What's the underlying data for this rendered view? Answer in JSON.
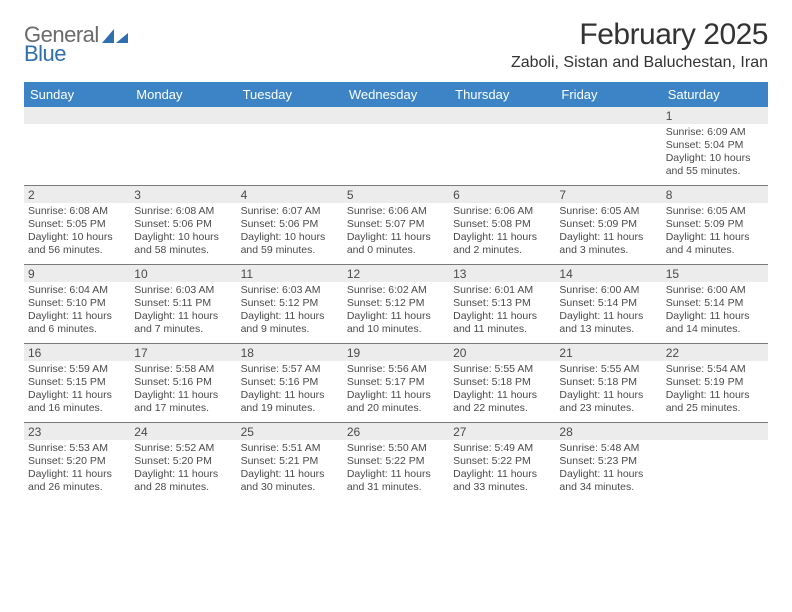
{
  "brand": {
    "line1": "General",
    "line2": "Blue"
  },
  "title": "February 2025",
  "location": "Zaboli, Sistan and Baluchestan, Iran",
  "colors": {
    "header_bg": "#3d84c6",
    "header_text": "#ffffff",
    "strip_bg": "#ececec",
    "body_text": "#4a4a4a",
    "rule": "#7a7a7a",
    "logo_gray": "#6a6a6a",
    "logo_blue": "#2f6fb0"
  },
  "typography": {
    "title_fontsize": 30,
    "location_fontsize": 16,
    "dow_fontsize": 13,
    "daynum_fontsize": 12,
    "body_fontsize": 10.5
  },
  "days_of_week": [
    "Sunday",
    "Monday",
    "Tuesday",
    "Wednesday",
    "Thursday",
    "Friday",
    "Saturday"
  ],
  "weeks": [
    [
      {
        "n": "",
        "sunrise": "",
        "sunset": "",
        "daylight1": "",
        "daylight2": ""
      },
      {
        "n": "",
        "sunrise": "",
        "sunset": "",
        "daylight1": "",
        "daylight2": ""
      },
      {
        "n": "",
        "sunrise": "",
        "sunset": "",
        "daylight1": "",
        "daylight2": ""
      },
      {
        "n": "",
        "sunrise": "",
        "sunset": "",
        "daylight1": "",
        "daylight2": ""
      },
      {
        "n": "",
        "sunrise": "",
        "sunset": "",
        "daylight1": "",
        "daylight2": ""
      },
      {
        "n": "",
        "sunrise": "",
        "sunset": "",
        "daylight1": "",
        "daylight2": ""
      },
      {
        "n": "1",
        "sunrise": "Sunrise: 6:09 AM",
        "sunset": "Sunset: 5:04 PM",
        "daylight1": "Daylight: 10 hours",
        "daylight2": "and 55 minutes."
      }
    ],
    [
      {
        "n": "2",
        "sunrise": "Sunrise: 6:08 AM",
        "sunset": "Sunset: 5:05 PM",
        "daylight1": "Daylight: 10 hours",
        "daylight2": "and 56 minutes."
      },
      {
        "n": "3",
        "sunrise": "Sunrise: 6:08 AM",
        "sunset": "Sunset: 5:06 PM",
        "daylight1": "Daylight: 10 hours",
        "daylight2": "and 58 minutes."
      },
      {
        "n": "4",
        "sunrise": "Sunrise: 6:07 AM",
        "sunset": "Sunset: 5:06 PM",
        "daylight1": "Daylight: 10 hours",
        "daylight2": "and 59 minutes."
      },
      {
        "n": "5",
        "sunrise": "Sunrise: 6:06 AM",
        "sunset": "Sunset: 5:07 PM",
        "daylight1": "Daylight: 11 hours",
        "daylight2": "and 0 minutes."
      },
      {
        "n": "6",
        "sunrise": "Sunrise: 6:06 AM",
        "sunset": "Sunset: 5:08 PM",
        "daylight1": "Daylight: 11 hours",
        "daylight2": "and 2 minutes."
      },
      {
        "n": "7",
        "sunrise": "Sunrise: 6:05 AM",
        "sunset": "Sunset: 5:09 PM",
        "daylight1": "Daylight: 11 hours",
        "daylight2": "and 3 minutes."
      },
      {
        "n": "8",
        "sunrise": "Sunrise: 6:05 AM",
        "sunset": "Sunset: 5:09 PM",
        "daylight1": "Daylight: 11 hours",
        "daylight2": "and 4 minutes."
      }
    ],
    [
      {
        "n": "9",
        "sunrise": "Sunrise: 6:04 AM",
        "sunset": "Sunset: 5:10 PM",
        "daylight1": "Daylight: 11 hours",
        "daylight2": "and 6 minutes."
      },
      {
        "n": "10",
        "sunrise": "Sunrise: 6:03 AM",
        "sunset": "Sunset: 5:11 PM",
        "daylight1": "Daylight: 11 hours",
        "daylight2": "and 7 minutes."
      },
      {
        "n": "11",
        "sunrise": "Sunrise: 6:03 AM",
        "sunset": "Sunset: 5:12 PM",
        "daylight1": "Daylight: 11 hours",
        "daylight2": "and 9 minutes."
      },
      {
        "n": "12",
        "sunrise": "Sunrise: 6:02 AM",
        "sunset": "Sunset: 5:12 PM",
        "daylight1": "Daylight: 11 hours",
        "daylight2": "and 10 minutes."
      },
      {
        "n": "13",
        "sunrise": "Sunrise: 6:01 AM",
        "sunset": "Sunset: 5:13 PM",
        "daylight1": "Daylight: 11 hours",
        "daylight2": "and 11 minutes."
      },
      {
        "n": "14",
        "sunrise": "Sunrise: 6:00 AM",
        "sunset": "Sunset: 5:14 PM",
        "daylight1": "Daylight: 11 hours",
        "daylight2": "and 13 minutes."
      },
      {
        "n": "15",
        "sunrise": "Sunrise: 6:00 AM",
        "sunset": "Sunset: 5:14 PM",
        "daylight1": "Daylight: 11 hours",
        "daylight2": "and 14 minutes."
      }
    ],
    [
      {
        "n": "16",
        "sunrise": "Sunrise: 5:59 AM",
        "sunset": "Sunset: 5:15 PM",
        "daylight1": "Daylight: 11 hours",
        "daylight2": "and 16 minutes."
      },
      {
        "n": "17",
        "sunrise": "Sunrise: 5:58 AM",
        "sunset": "Sunset: 5:16 PM",
        "daylight1": "Daylight: 11 hours",
        "daylight2": "and 17 minutes."
      },
      {
        "n": "18",
        "sunrise": "Sunrise: 5:57 AM",
        "sunset": "Sunset: 5:16 PM",
        "daylight1": "Daylight: 11 hours",
        "daylight2": "and 19 minutes."
      },
      {
        "n": "19",
        "sunrise": "Sunrise: 5:56 AM",
        "sunset": "Sunset: 5:17 PM",
        "daylight1": "Daylight: 11 hours",
        "daylight2": "and 20 minutes."
      },
      {
        "n": "20",
        "sunrise": "Sunrise: 5:55 AM",
        "sunset": "Sunset: 5:18 PM",
        "daylight1": "Daylight: 11 hours",
        "daylight2": "and 22 minutes."
      },
      {
        "n": "21",
        "sunrise": "Sunrise: 5:55 AM",
        "sunset": "Sunset: 5:18 PM",
        "daylight1": "Daylight: 11 hours",
        "daylight2": "and 23 minutes."
      },
      {
        "n": "22",
        "sunrise": "Sunrise: 5:54 AM",
        "sunset": "Sunset: 5:19 PM",
        "daylight1": "Daylight: 11 hours",
        "daylight2": "and 25 minutes."
      }
    ],
    [
      {
        "n": "23",
        "sunrise": "Sunrise: 5:53 AM",
        "sunset": "Sunset: 5:20 PM",
        "daylight1": "Daylight: 11 hours",
        "daylight2": "and 26 minutes."
      },
      {
        "n": "24",
        "sunrise": "Sunrise: 5:52 AM",
        "sunset": "Sunset: 5:20 PM",
        "daylight1": "Daylight: 11 hours",
        "daylight2": "and 28 minutes."
      },
      {
        "n": "25",
        "sunrise": "Sunrise: 5:51 AM",
        "sunset": "Sunset: 5:21 PM",
        "daylight1": "Daylight: 11 hours",
        "daylight2": "and 30 minutes."
      },
      {
        "n": "26",
        "sunrise": "Sunrise: 5:50 AM",
        "sunset": "Sunset: 5:22 PM",
        "daylight1": "Daylight: 11 hours",
        "daylight2": "and 31 minutes."
      },
      {
        "n": "27",
        "sunrise": "Sunrise: 5:49 AM",
        "sunset": "Sunset: 5:22 PM",
        "daylight1": "Daylight: 11 hours",
        "daylight2": "and 33 minutes."
      },
      {
        "n": "28",
        "sunrise": "Sunrise: 5:48 AM",
        "sunset": "Sunset: 5:23 PM",
        "daylight1": "Daylight: 11 hours",
        "daylight2": "and 34 minutes."
      },
      {
        "n": "",
        "sunrise": "",
        "sunset": "",
        "daylight1": "",
        "daylight2": ""
      }
    ]
  ]
}
